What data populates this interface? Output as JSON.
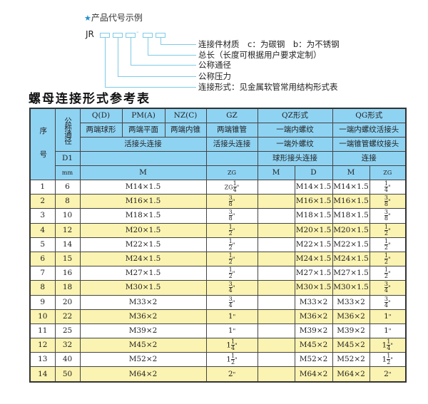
{
  "code_example": {
    "title": "产品代号示例",
    "prefix": "JR",
    "dash": "-",
    "labels": [
      "连接件材质　c：为碳钢　b：为不锈钢",
      "总长（长度可根据用户要求定制）",
      "公称通径",
      "公称压力",
      "连接形式：见金属软管常用结构形式表"
    ]
  },
  "table_title": "螺母连接形式参考表",
  "header": {
    "seq": "序　号",
    "dn": "公称通径",
    "d1": "D1",
    "mm": "mm",
    "qd": "Q(D)",
    "pma": "PM(A)",
    "nzc": "NZ(C)",
    "gz": "GZ",
    "qz": "QZ形式",
    "qg": "QG形式",
    "qd2": "两端球形",
    "pma2": "两端平面",
    "nzc2": "两端内锥",
    "gz2": "两端锥管",
    "qz2": "一端内螺纹",
    "qg2": "一端内螺纹活接头",
    "join": "活接头连接",
    "gz3": "活接头连接",
    "qz3": "一端外螺纹",
    "qg3": "一端锥管螺纹接头",
    "qz4": "球形接头连接",
    "qg4": "连接",
    "m": "M",
    "zg": "ZG",
    "qz_m": "M",
    "qz_d": "D",
    "qg_m": "M",
    "qg_zg": "ZG"
  },
  "rows": [
    {
      "no": "1",
      "dn": "6",
      "m": "M14×1.5",
      "gz": {
        "pre": "ZG",
        "whole": "",
        "num": "1",
        "den": "4",
        "suf": "\""
      },
      "d": "M14×1.5",
      "qgm": "M14×1.5",
      "zg": {
        "pre": "",
        "whole": "",
        "num": "1",
        "den": "4",
        "suf": "\""
      }
    },
    {
      "no": "2",
      "dn": "8",
      "m": "M16×1.5",
      "gz": {
        "pre": "",
        "whole": "",
        "num": "3",
        "den": "8",
        "suf": "\""
      },
      "d": "M16×1.5",
      "qgm": "M16×1.5",
      "zg": {
        "pre": "",
        "whole": "",
        "num": "3",
        "den": "8",
        "suf": "\""
      }
    },
    {
      "no": "3",
      "dn": "10",
      "m": "M18×1.5",
      "gz": {
        "pre": "",
        "whole": "",
        "num": "3",
        "den": "8",
        "suf": "\""
      },
      "d": "M18×1.5",
      "qgm": "M18×1.5",
      "zg": {
        "pre": "",
        "whole": "",
        "num": "3",
        "den": "8",
        "suf": "\""
      }
    },
    {
      "no": "4",
      "dn": "12",
      "m": "M20×1.5",
      "gz": {
        "pre": "",
        "whole": "",
        "num": "1",
        "den": "2",
        "suf": "\""
      },
      "d": "M20×1.5",
      "qgm": "M20×1.5",
      "zg": {
        "pre": "",
        "whole": "",
        "num": "1",
        "den": "2",
        "suf": "\""
      }
    },
    {
      "no": "5",
      "dn": "14",
      "m": "M22×1.5",
      "gz": {
        "pre": "",
        "whole": "",
        "num": "1",
        "den": "2",
        "suf": "\""
      },
      "d": "M22×1.5",
      "qgm": "M22×1.5",
      "zg": {
        "pre": "",
        "whole": "",
        "num": "1",
        "den": "2",
        "suf": "\""
      }
    },
    {
      "no": "6",
      "dn": "15",
      "m": "M24×1.5",
      "gz": {
        "pre": "",
        "whole": "",
        "num": "1",
        "den": "2",
        "suf": "\""
      },
      "d": "M24×1.5",
      "qgm": "M24×1.5",
      "zg": {
        "pre": "",
        "whole": "",
        "num": "1",
        "den": "2",
        "suf": "\""
      }
    },
    {
      "no": "7",
      "dn": "16",
      "m": "M27×1.5",
      "gz": {
        "pre": "",
        "whole": "",
        "num": "1",
        "den": "2",
        "suf": "\""
      },
      "d": "M27×1.5",
      "qgm": "M27×1.5",
      "zg": {
        "pre": "",
        "whole": "",
        "num": "1",
        "den": "2",
        "suf": "\""
      }
    },
    {
      "no": "8",
      "dn": "18",
      "m": "M30×1.5",
      "gz": {
        "pre": "",
        "whole": "",
        "num": "3",
        "den": "4",
        "suf": "\""
      },
      "d": "M30×1.5",
      "qgm": "M30×1.5",
      "zg": {
        "pre": "",
        "whole": "",
        "num": "3",
        "den": "4",
        "suf": "\""
      }
    },
    {
      "no": "9",
      "dn": "20",
      "m": "M33×2",
      "gz": {
        "pre": "",
        "whole": "",
        "num": "3",
        "den": "4",
        "suf": "\""
      },
      "d": "M33×2",
      "qgm": "M33×2",
      "zg": {
        "pre": "",
        "whole": "",
        "num": "3",
        "den": "4",
        "suf": "\""
      }
    },
    {
      "no": "10",
      "dn": "22",
      "m": "M36×2",
      "gz": {
        "pre": "",
        "whole": "1",
        "num": "",
        "den": "",
        "suf": "\""
      },
      "d": "M36×2",
      "qgm": "M36×2",
      "zg": {
        "pre": "",
        "whole": "1",
        "num": "",
        "den": "",
        "suf": "\""
      }
    },
    {
      "no": "11",
      "dn": "25",
      "m": "M39×2",
      "gz": {
        "pre": "",
        "whole": "1",
        "num": "",
        "den": "",
        "suf": "\""
      },
      "d": "M39×2",
      "qgm": "M39×2",
      "zg": {
        "pre": "",
        "whole": "1",
        "num": "",
        "den": "",
        "suf": "\""
      }
    },
    {
      "no": "12",
      "dn": "32",
      "m": "M45×2",
      "gz": {
        "pre": "",
        "whole": "1",
        "num": "1",
        "den": "4",
        "suf": "\""
      },
      "d": "M45×2",
      "qgm": "M45×2",
      "zg": {
        "pre": "",
        "whole": "1",
        "num": "1",
        "den": "4",
        "suf": "\""
      }
    },
    {
      "no": "13",
      "dn": "40",
      "m": "M52×2",
      "gz": {
        "pre": "",
        "whole": "1",
        "num": "1",
        "den": "2",
        "suf": "\""
      },
      "d": "M52×2",
      "qgm": "M52×2",
      "zg": {
        "pre": "",
        "whole": "1",
        "num": "1",
        "den": "2",
        "suf": "\""
      }
    },
    {
      "no": "14",
      "dn": "50",
      "m": "M64×2",
      "gz": {
        "pre": "",
        "whole": "2",
        "num": "",
        "den": "",
        "suf": "\""
      },
      "d": "M64×2",
      "qgm": "M64×2",
      "zg": {
        "pre": "",
        "whole": "2",
        "num": "",
        "den": "",
        "suf": "\""
      }
    }
  ],
  "colors": {
    "header_bg": "#8fd3f3",
    "alt_row_bg": "#fbf3b1",
    "line": "#7fcbe8",
    "star": "#1e8fd0"
  }
}
